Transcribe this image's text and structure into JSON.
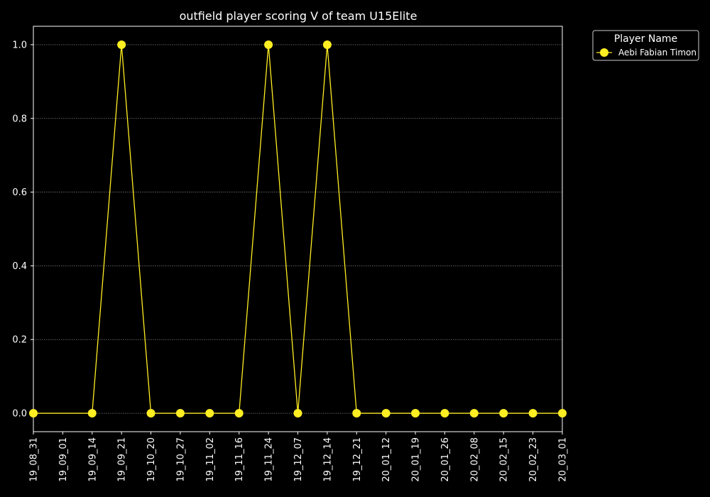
{
  "chart_data": {
    "type": "line",
    "title": "outfield player scoring V of team U15Elite",
    "xlabel": "",
    "ylabel": "",
    "categories": [
      "19_08_31",
      "19_09_01",
      "19_09_14",
      "19_09_21",
      "19_10_20",
      "19_10_27",
      "19_11_02",
      "19_11_16",
      "19_11_24",
      "19_12_07",
      "19_12_14",
      "19_12_21",
      "20_01_12",
      "20_01_19",
      "20_01_26",
      "20_02_08",
      "20_02_15",
      "20_02_23",
      "20_03_01"
    ],
    "series": [
      {
        "name": "Aebi Fabian Timon",
        "x": [
          "19_08_31",
          "19_09_14",
          "19_09_21",
          "19_10_20",
          "19_10_27",
          "19_11_02",
          "19_11_16",
          "19_11_24",
          "19_12_07",
          "19_12_14",
          "19_12_21",
          "20_01_12",
          "20_01_19",
          "20_01_26",
          "20_02_08",
          "20_02_15",
          "20_02_23",
          "20_03_01"
        ],
        "values": [
          0,
          0,
          1,
          0,
          0,
          0,
          0,
          1,
          0,
          1,
          0,
          0,
          0,
          0,
          0,
          0,
          0,
          0
        ]
      }
    ],
    "ylim": [
      -0.05,
      1.05
    ],
    "yticks": [
      0.0,
      0.2,
      0.4,
      0.6,
      0.8,
      1.0
    ],
    "ytick_labels": [
      "0.0",
      "0.2",
      "0.4",
      "0.6",
      "0.8",
      "1.0"
    ],
    "grid": "horizontal dotted",
    "legend": {
      "title": "Player Name",
      "placement": "outside-top-right"
    },
    "colors": {
      "background": "#000000",
      "axes": "#ffffff",
      "series": "#ffee22",
      "grid": "#999999"
    }
  }
}
